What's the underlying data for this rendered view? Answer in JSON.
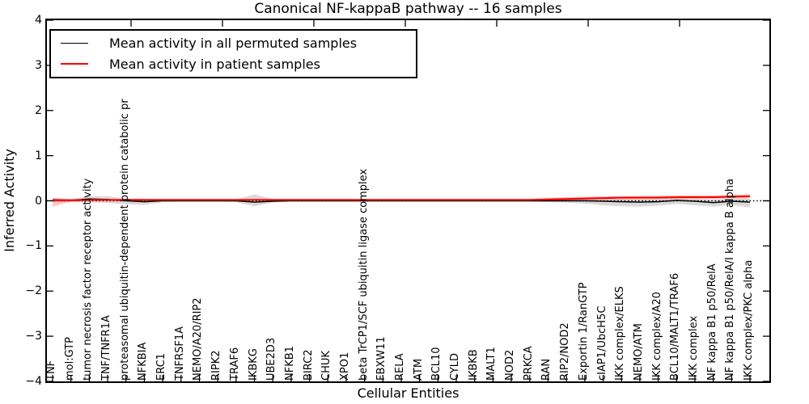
{
  "figure": {
    "title": "Canonical NF-kappaB pathway -- 16 samples",
    "xlabel": "Cellular Entities",
    "ylabel": "Inferred Activity"
  },
  "legend": {
    "entries": [
      {
        "label": "Mean activity in all permuted samples",
        "color": "#000000"
      },
      {
        "label": "Mean activity in patient samples",
        "color": "#ff0000"
      }
    ]
  },
  "chart_data": {
    "type": "line",
    "title": "Canonical NF-kappaB pathway -- 16 samples",
    "xlabel": "Cellular Entities",
    "ylabel": "Inferred Activity",
    "ylim": [
      -4,
      4
    ],
    "yticks": [
      4,
      3,
      2,
      1,
      0,
      -1,
      -2,
      -3,
      -4
    ],
    "grid": false,
    "legend_position": "upper left",
    "zero_line": "dotted",
    "categories": [
      "TNF",
      "mol:GTP",
      "tumor necrosis factor receptor activity",
      "TNF/TNFR1A",
      "proteasomal ubiquitin-dependent protein catabolic pr",
      "NFKBIA",
      "ERC1",
      "TNFRSF1A",
      "NEMO/A20/RIP2",
      "RIPK2",
      "TRAF6",
      "IKBKG",
      "UBE2D3",
      "NFKB1",
      "BIRC2",
      "CHUK",
      "XPO1",
      "beta TrCP1/SCF ubiquitin ligase complex",
      "FBXW11",
      "RELA",
      "ATM",
      "BCL10",
      "CYLD",
      "IKBKB",
      "MALT1",
      "NOD2",
      "PRKCA",
      "RAN",
      "RIP2/NOD2",
      "Exportin 1/RanGTP",
      "cIAP1/UbcH5C",
      "IKK complex/ELKS",
      "NEMO/ATM",
      "IKK complex/A20",
      "BCL10/MALT1/TRAF6",
      "IKK complex",
      "NF kappa B1 p50/RelA",
      "NF kappa B1 p50/RelA/I kappa B alpha",
      "IKK complex/PKC alpha"
    ],
    "series": [
      {
        "name": "Mean activity in all permuted samples",
        "line_name": "permuted-mean-line",
        "band_name": "permuted-std-band",
        "color": "#000000",
        "band_color": "rgba(0,0,0,0.15)",
        "values": [
          0.02,
          0.01,
          0.04,
          0.03,
          0.0,
          -0.02,
          0.0,
          0.0,
          0.0,
          0.0,
          0.0,
          -0.03,
          -0.01,
          0.0,
          0.0,
          0.0,
          0.0,
          0.0,
          0.0,
          0.0,
          0.0,
          0.0,
          0.0,
          0.0,
          0.0,
          0.0,
          0.0,
          0.0,
          0.0,
          0.0,
          -0.01,
          -0.02,
          -0.03,
          -0.02,
          0.01,
          -0.01,
          -0.04,
          -0.01,
          -0.03
        ],
        "band_low": [
          -0.03,
          -0.02,
          -0.03,
          -0.05,
          -0.08,
          -0.09,
          -0.03,
          -0.02,
          -0.02,
          -0.02,
          -0.03,
          -0.12,
          -0.04,
          -0.02,
          -0.02,
          -0.02,
          -0.02,
          -0.02,
          -0.02,
          -0.02,
          -0.02,
          -0.02,
          -0.02,
          -0.02,
          -0.02,
          -0.02,
          -0.02,
          -0.03,
          -0.04,
          -0.06,
          -0.1,
          -0.12,
          -0.13,
          -0.11,
          -0.07,
          -0.1,
          -0.13,
          -0.09,
          -0.15
        ],
        "band_high": [
          0.06,
          0.04,
          0.1,
          0.1,
          0.05,
          0.04,
          0.03,
          0.02,
          0.02,
          0.02,
          0.03,
          0.14,
          0.04,
          0.02,
          0.02,
          0.02,
          0.02,
          0.02,
          0.02,
          0.02,
          0.02,
          0.02,
          0.02,
          0.02,
          0.02,
          0.02,
          0.02,
          0.03,
          0.03,
          0.04,
          0.04,
          0.04,
          0.03,
          0.04,
          0.05,
          0.04,
          0.02,
          0.05,
          0.04
        ]
      },
      {
        "name": "Mean activity in patient samples",
        "line_name": "patient-mean-line",
        "band_name": "patient-std-band",
        "color": "#ff0000",
        "band_color": "rgba(255,0,0,0.22)",
        "values": [
          0.01,
          0.01,
          0.02,
          0.02,
          0.02,
          0.02,
          0.02,
          0.02,
          0.02,
          0.02,
          0.02,
          0.02,
          0.02,
          0.02,
          0.02,
          0.02,
          0.02,
          0.02,
          0.02,
          0.02,
          0.02,
          0.02,
          0.02,
          0.02,
          0.02,
          0.02,
          0.02,
          0.03,
          0.04,
          0.05,
          0.06,
          0.07,
          0.07,
          0.07,
          0.08,
          0.08,
          0.08,
          0.09,
          0.1
        ],
        "band_low": [
          -0.13,
          -0.02,
          -0.01,
          0.0,
          0.0,
          0.0,
          0.0,
          0.0,
          0.0,
          0.0,
          0.0,
          0.0,
          0.0,
          0.0,
          0.0,
          0.0,
          0.0,
          0.0,
          0.0,
          0.0,
          0.0,
          0.0,
          0.0,
          0.0,
          0.0,
          0.0,
          0.0,
          0.0,
          0.01,
          0.02,
          0.03,
          0.03,
          0.03,
          0.04,
          0.04,
          0.04,
          0.04,
          0.05,
          0.05
        ],
        "band_high": [
          0.06,
          0.04,
          0.05,
          0.04,
          0.04,
          0.04,
          0.04,
          0.04,
          0.04,
          0.04,
          0.04,
          0.04,
          0.04,
          0.04,
          0.04,
          0.04,
          0.04,
          0.04,
          0.04,
          0.04,
          0.04,
          0.04,
          0.04,
          0.04,
          0.04,
          0.04,
          0.04,
          0.06,
          0.08,
          0.09,
          0.1,
          0.1,
          0.11,
          0.11,
          0.12,
          0.12,
          0.12,
          0.13,
          0.15
        ]
      }
    ]
  }
}
